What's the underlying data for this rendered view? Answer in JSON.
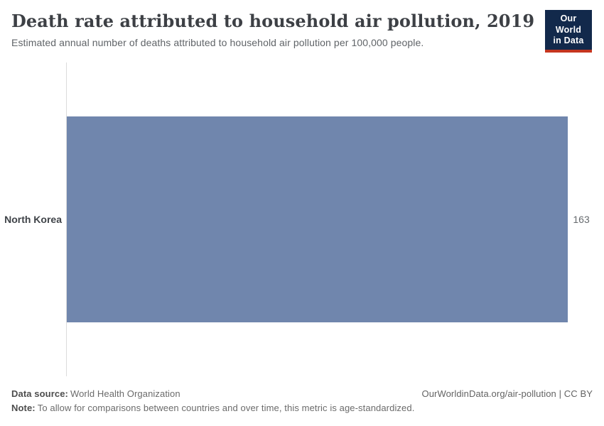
{
  "header": {
    "title": "Death rate attributed to household air pollution, 2019",
    "subtitle": "Estimated annual number of deaths attributed to household air pollution per 100,000 people.",
    "logo_line1": "Our World",
    "logo_line2": "in Data"
  },
  "chart_data": {
    "type": "bar",
    "orientation": "horizontal",
    "title": "Death rate attributed to household air pollution, 2019",
    "categories": [
      "North Korea"
    ],
    "values": [
      163
    ],
    "value_labels": [
      "163"
    ],
    "xlim": [
      0,
      171
    ],
    "grid": false,
    "legend": "none",
    "bar_color": "#7086ad"
  },
  "footer": {
    "data_source_label": "Data source:",
    "data_source_value": "World Health Organization",
    "credit": "OurWorldinData.org/air-pollution | CC BY",
    "note_label": "Note:",
    "note_value": "To allow for comparisons between countries and over time, this metric is age-standardized."
  },
  "colors": {
    "bar": "#7086ad",
    "logo_navy": "#12294b",
    "logo_red": "#c5351f",
    "axis_line": "#dcdcdc",
    "title_text": "#3d4045",
    "muted_text": "#666a6e"
  }
}
